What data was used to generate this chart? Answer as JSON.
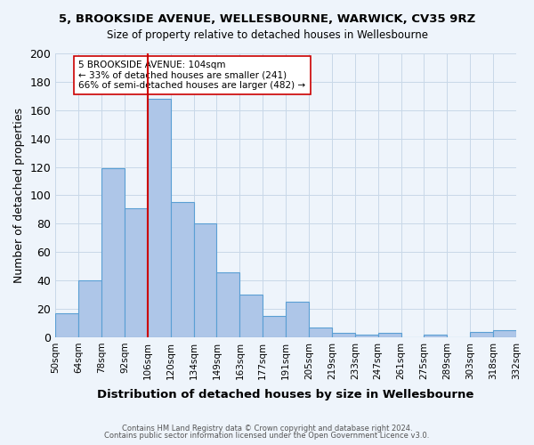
{
  "title1": "5, BROOKSIDE AVENUE, WELLESBOURNE, WARWICK, CV35 9RZ",
  "title2": "Size of property relative to detached houses in Wellesbourne",
  "xlabel": "Distribution of detached houses by size in Wellesbourne",
  "ylabel": "Number of detached properties",
  "footer1": "Contains HM Land Registry data © Crown copyright and database right 2024.",
  "footer2": "Contains public sector information licensed under the Open Government Licence v3.0.",
  "bin_labels": [
    "50sqm",
    "64sqm",
    "78sqm",
    "92sqm",
    "106sqm",
    "120sqm",
    "134sqm",
    "149sqm",
    "163sqm",
    "177sqm",
    "191sqm",
    "205sqm",
    "219sqm",
    "233sqm",
    "247sqm",
    "261sqm",
    "275sqm",
    "289sqm",
    "303sqm",
    "318sqm",
    "332sqm"
  ],
  "bar_heights": [
    17,
    40,
    119,
    91,
    168,
    95,
    80,
    46,
    30,
    15,
    25,
    7,
    3,
    2,
    3,
    0,
    2,
    0,
    4,
    5
  ],
  "bar_color": "#aec6e8",
  "bar_edge_color": "#5a9fd4",
  "grid_color": "#c8d8e8",
  "background_color": "#eef4fb",
  "vline_bin_index": 4,
  "vline_color": "#cc0000",
  "annotation_text": "5 BROOKSIDE AVENUE: 104sqm\n← 33% of detached houses are smaller (241)\n66% of semi-detached houses are larger (482) →",
  "annotation_box_color": "#ffffff",
  "annotation_box_edge_color": "#cc0000",
  "ylim": [
    0,
    200
  ],
  "yticks": [
    0,
    20,
    40,
    60,
    80,
    100,
    120,
    140,
    160,
    180,
    200
  ]
}
